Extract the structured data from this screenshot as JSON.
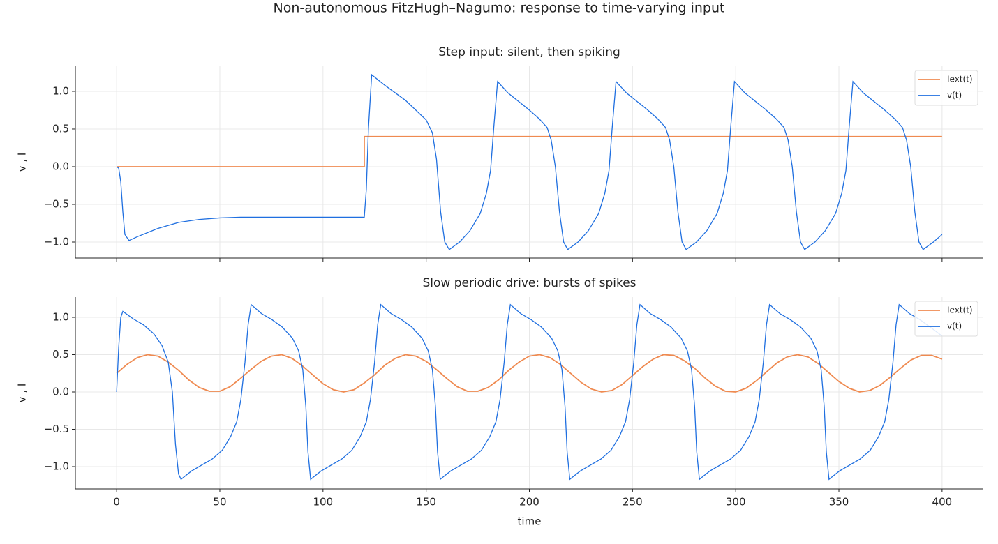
{
  "title": "Non-autonomous FitzHugh–Nagumo: response to time-varying input",
  "chart_data": [
    {
      "type": "line",
      "title": "Step input: silent, then spiking",
      "ylabel": "v , I",
      "xlim": [
        -20,
        420
      ],
      "ylim": [
        -1.213,
        1.333
      ],
      "xticks": [
        0,
        50,
        100,
        150,
        200,
        250,
        300,
        350,
        400
      ],
      "yticks": [
        {
          "value": -1,
          "label": "−1.0"
        },
        {
          "value": -0.5,
          "label": "−0.5"
        },
        {
          "value": 0,
          "label": "0.0"
        },
        {
          "value": 0.5,
          "label": "0.5"
        },
        {
          "value": 1,
          "label": "1.0"
        }
      ],
      "grid": true,
      "legend": "upper right",
      "series": [
        {
          "name": "Iext(t)",
          "color": "#ef8a50",
          "x": [
            0,
            120,
            120,
            400
          ],
          "values": [
            0,
            0,
            0.4,
            0.4
          ]
        },
        {
          "name": "v(t)",
          "color": "#1f6fe0",
          "x": [
            0,
            1,
            2,
            3,
            4,
            6,
            10,
            20,
            30,
            40,
            50,
            60,
            120,
            121,
            122,
            123.6,
            130,
            140,
            150,
            153,
            155,
            157,
            159,
            161.2,
            166.2,
            171.2,
            176.2,
            179.2,
            181.2,
            182.7,
            184.6,
            189.6,
            194.6,
            199.6,
            204.6,
            208.6,
            210.6,
            212.6,
            214.6,
            216.6,
            218.6,
            223.6,
            228.6,
            233.6,
            236.6,
            238.6,
            240.1,
            242.0,
            247.0,
            252.0,
            257.0,
            262.0,
            266.0,
            268.0,
            270.0,
            272.0,
            274.0,
            276.0,
            281.0,
            286.0,
            291.0,
            294.0,
            296.0,
            297.5,
            299.4,
            304.4,
            309.4,
            314.4,
            319.4,
            323.4,
            325.4,
            327.4,
            329.4,
            331.4,
            333.4,
            338.4,
            343.4,
            348.4,
            351.4,
            353.4,
            354.9,
            356.8,
            361.8,
            366.8,
            371.8,
            376.8,
            380.8,
            382.8,
            384.8,
            386.8,
            388.8,
            390.8,
            395.8,
            400
          ],
          "values": [
            0,
            -0.02,
            -0.2,
            -0.6,
            -0.9,
            -0.98,
            -0.93,
            -0.82,
            -0.74,
            -0.7,
            -0.68,
            -0.67,
            -0.67,
            -0.3,
            0.5,
            1.22,
            1.08,
            0.88,
            0.62,
            0.45,
            0.1,
            -0.6,
            -1.0,
            -1.1,
            -1.0,
            -0.85,
            -0.62,
            -0.35,
            -0.05,
            0.5,
            1.13,
            0.98,
            0.87,
            0.76,
            0.64,
            0.52,
            0.35,
            0.0,
            -0.6,
            -1.0,
            -1.1,
            -1.0,
            -0.85,
            -0.62,
            -0.35,
            -0.05,
            0.5,
            1.13,
            0.98,
            0.87,
            0.76,
            0.64,
            0.52,
            0.35,
            0.0,
            -0.6,
            -1.0,
            -1.1,
            -1.0,
            -0.85,
            -0.62,
            -0.35,
            -0.05,
            0.5,
            1.13,
            0.98,
            0.87,
            0.76,
            0.64,
            0.52,
            0.35,
            0.0,
            -0.6,
            -1.0,
            -1.1,
            -1.0,
            -0.85,
            -0.62,
            -0.35,
            -0.05,
            0.5,
            1.13,
            0.98,
            0.87,
            0.76,
            0.64,
            0.52,
            0.35,
            0.0,
            -0.6,
            -1.0,
            -1.1,
            -1.0,
            -0.9
          ]
        }
      ]
    },
    {
      "type": "line",
      "title": "Slow periodic drive: bursts of spikes",
      "ylabel": "v , I",
      "xlabel": "time",
      "xlim": [
        -20,
        420
      ],
      "ylim": [
        -1.299,
        1.271
      ],
      "xticks": [
        0,
        50,
        100,
        150,
        200,
        250,
        300,
        350,
        400
      ],
      "yticks": [
        {
          "value": -1,
          "label": "−1.0"
        },
        {
          "value": -0.5,
          "label": "−0.5"
        },
        {
          "value": 0,
          "label": "0.0"
        },
        {
          "value": 0.5,
          "label": "0.5"
        },
        {
          "value": 1,
          "label": "1.0"
        }
      ],
      "grid": true,
      "legend": "upper right",
      "series": [
        {
          "name": "Iext(t)",
          "color": "#ef8a50",
          "x": [
            0,
            5,
            10,
            15,
            20,
            25,
            30,
            35,
            40,
            45,
            50,
            55,
            60,
            65,
            70,
            75,
            80,
            85,
            90,
            95,
            100,
            105,
            110,
            115,
            120,
            125,
            130,
            135,
            140,
            145,
            150,
            155,
            160,
            165,
            170,
            175,
            180,
            185,
            190,
            195,
            200,
            205,
            210,
            215,
            220,
            225,
            230,
            235,
            240,
            245,
            250,
            255,
            260,
            265,
            270,
            275,
            280,
            285,
            290,
            295,
            300,
            305,
            310,
            315,
            320,
            325,
            330,
            335,
            340,
            345,
            350,
            355,
            360,
            365,
            370,
            375,
            380,
            385,
            390,
            395,
            400
          ],
          "values": [
            0.25,
            0.37,
            0.46,
            0.5,
            0.48,
            0.4,
            0.29,
            0.16,
            0.06,
            0.01,
            0.01,
            0.07,
            0.18,
            0.3,
            0.41,
            0.48,
            0.5,
            0.45,
            0.35,
            0.23,
            0.11,
            0.03,
            0.0,
            0.03,
            0.12,
            0.23,
            0.36,
            0.45,
            0.5,
            0.48,
            0.41,
            0.3,
            0.18,
            0.07,
            0.01,
            0.01,
            0.06,
            0.16,
            0.29,
            0.4,
            0.48,
            0.5,
            0.46,
            0.37,
            0.25,
            0.13,
            0.04,
            0.0,
            0.02,
            0.1,
            0.22,
            0.34,
            0.44,
            0.5,
            0.49,
            0.42,
            0.32,
            0.19,
            0.08,
            0.01,
            0.0,
            0.05,
            0.15,
            0.27,
            0.39,
            0.47,
            0.5,
            0.47,
            0.38,
            0.26,
            0.14,
            0.05,
            0.0,
            0.02,
            0.09,
            0.2,
            0.32,
            0.43,
            0.49,
            0.49,
            0.44
          ]
        },
        {
          "name": "v(t)",
          "color": "#1f6fe0",
          "x": [
            0,
            1,
            2,
            3,
            8,
            13,
            18,
            22,
            25,
            27,
            28.5,
            30,
            31.2,
            36.2,
            41.2,
            46.2,
            51.2,
            55.2,
            58.2,
            60.2,
            62.2,
            63.7,
            65.2,
            70.2,
            75.2,
            80.2,
            85.2,
            88.2,
            90.2,
            91.7,
            92.7,
            94.0,
            99,
            104,
            109,
            114,
            118,
            121,
            123,
            125,
            126.5,
            128,
            133,
            138,
            143,
            148,
            151,
            153,
            154.5,
            155.5,
            156.8,
            161.8,
            166.8,
            171.8,
            176.8,
            180.8,
            183.8,
            185.8,
            187.8,
            189.3,
            190.8,
            195.8,
            200.8,
            205.8,
            210.8,
            213.8,
            215.8,
            217.3,
            218.3,
            219.6,
            224.6,
            229.6,
            234.6,
            239.6,
            243.6,
            246.6,
            248.6,
            250.6,
            252.1,
            253.6,
            258.6,
            263.6,
            268.6,
            273.6,
            276.6,
            278.6,
            280.1,
            281.1,
            282.4,
            287.4,
            292.4,
            297.4,
            302.4,
            306.4,
            309.4,
            311.4,
            313.4,
            314.9,
            316.4,
            321.4,
            326.4,
            331.4,
            336.4,
            339.4,
            341.4,
            342.9,
            343.9,
            345.2,
            350.2,
            355.2,
            360.2,
            365.2,
            369.2,
            372.2,
            374.2,
            376.2,
            377.7,
            379.2,
            384.2,
            389.2,
            394.2,
            400
          ],
          "values": [
            0,
            0.6,
            1.0,
            1.08,
            0.98,
            0.9,
            0.78,
            0.62,
            0.4,
            0.0,
            -0.7,
            -1.1,
            -1.17,
            -1.06,
            -0.98,
            -0.9,
            -0.78,
            -0.6,
            -0.4,
            -0.1,
            0.4,
            0.9,
            1.17,
            1.05,
            0.97,
            0.87,
            0.72,
            0.55,
            0.3,
            -0.2,
            -0.8,
            -1.17,
            -1.06,
            -0.98,
            -0.9,
            -0.78,
            -0.6,
            -0.4,
            -0.1,
            0.4,
            0.9,
            1.17,
            1.05,
            0.97,
            0.87,
            0.72,
            0.55,
            0.3,
            -0.2,
            -0.8,
            -1.17,
            -1.06,
            -0.98,
            -0.9,
            -0.78,
            -0.6,
            -0.4,
            -0.1,
            0.4,
            0.9,
            1.17,
            1.05,
            0.97,
            0.87,
            0.72,
            0.55,
            0.3,
            -0.2,
            -0.8,
            -1.17,
            -1.06,
            -0.98,
            -0.9,
            -0.78,
            -0.6,
            -0.4,
            -0.1,
            0.4,
            0.9,
            1.17,
            1.05,
            0.97,
            0.87,
            0.72,
            0.55,
            0.3,
            -0.2,
            -0.8,
            -1.17,
            -1.06,
            -0.98,
            -0.9,
            -0.78,
            -0.6,
            -0.4,
            -0.1,
            0.4,
            0.9,
            1.17,
            1.05,
            0.97,
            0.87,
            0.72,
            0.55,
            0.3,
            -0.2,
            -0.8,
            -1.17,
            -1.06,
            -0.98,
            -0.9,
            -0.78,
            -0.6,
            -0.4,
            -0.1,
            0.4,
            0.9,
            1.17,
            1.05,
            0.97,
            0.87,
            0.75
          ]
        }
      ]
    }
  ]
}
